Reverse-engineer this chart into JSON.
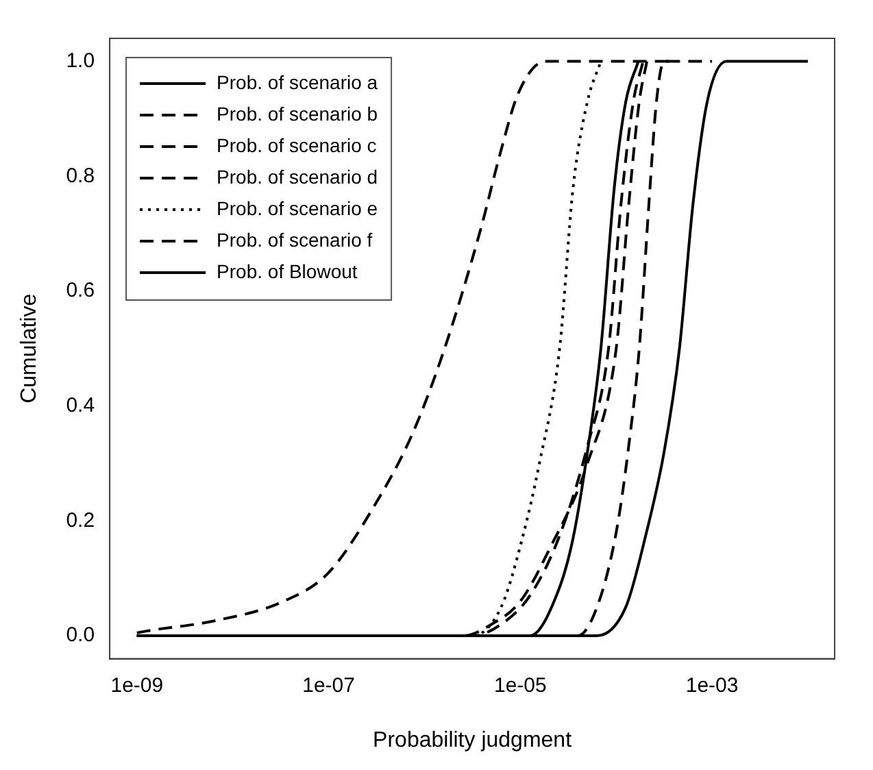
{
  "chart_data": {
    "type": "line",
    "xlabel": "Probability judgment",
    "ylabel": "Cumulative",
    "log": "x",
    "xlim": [
      5.2e-10,
      0.019
    ],
    "xticks": [
      {
        "value": 1e-09,
        "label": "1e-09"
      },
      {
        "value": 1e-07,
        "label": "1e-07"
      },
      {
        "value": 1e-05,
        "label": "1e-05"
      },
      {
        "value": 0.001,
        "label": "1e-03"
      }
    ],
    "ylim": [
      -0.04,
      1.04
    ],
    "yticks": [
      {
        "value": 0,
        "label": "0.0"
      },
      {
        "value": 0.2,
        "label": "0.2"
      },
      {
        "value": 0.4,
        "label": "0.4"
      },
      {
        "value": 0.6,
        "label": "0.6"
      },
      {
        "value": 0.8,
        "label": "0.8"
      },
      {
        "value": 1,
        "label": "1.0"
      }
    ],
    "grid": false,
    "legend": "top left",
    "marker": "none",
    "series": [
      {
        "name": "Prob. of scenario a",
        "color": "#000000",
        "line_style": "solid",
        "x": [
          1e-09,
          1.26e-05,
          2.51e-05,
          3.55e-05,
          5.01e-05,
          6.92e-05,
          9.55e-05,
          0.000126,
          0.00017
        ],
        "values": [
          0,
          0,
          0.08,
          0.17,
          0.32,
          0.5,
          0.78,
          0.93,
          1
        ]
      },
      {
        "name": "Prob. of scenario b",
        "color": "#000000",
        "line_style": "dashed",
        "x": [
          1e-09,
          3.98e-05,
          6.31e-05,
          0.0001,
          0.000135,
          0.000174,
          0.000219,
          0.000263,
          0.000316,
          0.001
        ],
        "values": [
          0,
          0,
          0.05,
          0.18,
          0.33,
          0.5,
          0.75,
          0.93,
          1,
          1
        ]
      },
      {
        "name": "Prob. of scenario c",
        "color": "#000000",
        "line_style": "dashed",
        "x": [
          1e-09,
          3.16e-06,
          6.31e-06,
          1.26e-05,
          2.51e-05,
          5.01e-05,
          8.32e-05,
          0.000112,
          0.000151,
          0.000191
        ],
        "values": [
          0,
          0,
          0.02,
          0.07,
          0.17,
          0.33,
          0.5,
          0.75,
          0.93,
          1
        ]
      },
      {
        "name": "Prob. of scenario d",
        "color": "#000000",
        "line_style": "dashed",
        "x": [
          1e-09,
          2.51e-06,
          5.01e-06,
          1e-05,
          2e-05,
          5.01e-05,
          0.0001,
          0.000135,
          0.000174,
          0.000209
        ],
        "values": [
          0,
          0,
          0.02,
          0.06,
          0.15,
          0.3,
          0.5,
          0.75,
          0.93,
          1
        ]
      },
      {
        "name": "Prob. of scenario e",
        "color": "#000000",
        "line_style": "dotted",
        "x": [
          1e-09,
          3.16e-06,
          6.31e-06,
          1.05e-05,
          1.58e-05,
          2.57e-05,
          3.55e-05,
          5.01e-05,
          6.92e-05
        ],
        "values": [
          0,
          0,
          0.05,
          0.17,
          0.3,
          0.5,
          0.78,
          0.93,
          1
        ]
      },
      {
        "name": "Prob. of scenario f",
        "color": "#000000",
        "line_style": "dashed",
        "x": [
          1e-09,
          1.23e-09,
          6.46e-09,
          3.39e-08,
          1e-07,
          3.09e-07,
          7.41e-07,
          1.62e-06,
          3.89e-06,
          6.17e-06,
          9.55e-06,
          1.82e-05,
          0.0004
        ],
        "values": [
          0.005,
          0.008,
          0.026,
          0.06,
          0.11,
          0.23,
          0.35,
          0.5,
          0.71,
          0.84,
          0.945,
          1,
          1
        ]
      },
      {
        "name": "Prob. of Blowout",
        "color": "#000000",
        "line_style": "solid",
        "x": [
          1e-09,
          6.31e-05,
          0.000126,
          0.0002,
          0.000316,
          0.000457,
          0.000631,
          0.000891,
          0.00141,
          0.01
        ],
        "values": [
          0,
          0,
          0.05,
          0.17,
          0.32,
          0.5,
          0.75,
          0.93,
          1,
          1
        ]
      }
    ]
  }
}
